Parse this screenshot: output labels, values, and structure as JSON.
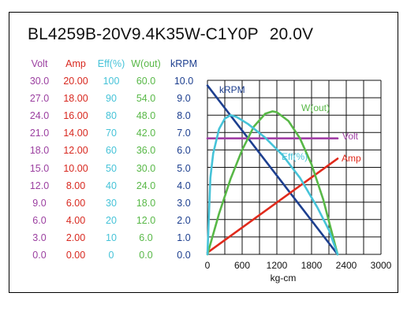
{
  "title": {
    "model": "BL4259B-20V9.4K35W-C1Y0P",
    "voltage": "20.0V"
  },
  "scale_columns": [
    {
      "key": "volt",
      "header": "Volt",
      "color": "#9b3fa0",
      "values": [
        "30.0",
        "27.0",
        "24.0",
        "21.0",
        "18.0",
        "15.0",
        "12.0",
        "9.0",
        "6.0",
        "3.0",
        "0.0"
      ]
    },
    {
      "key": "amp",
      "header": "Amp",
      "color": "#d8281f",
      "values": [
        "20.00",
        "18.00",
        "16.00",
        "14.00",
        "12.00",
        "10.00",
        "8.00",
        "6.00",
        "4.00",
        "2.00",
        "0.00"
      ]
    },
    {
      "key": "eff",
      "header": "Eff(%)",
      "color": "#46c3d8",
      "values": [
        "100",
        "90",
        "80",
        "70",
        "60",
        "50",
        "40",
        "30",
        "20",
        "10",
        "0"
      ]
    },
    {
      "key": "wout",
      "header": "W(out)",
      "color": "#58b847",
      "values": [
        "60.0",
        "54.0",
        "48.0",
        "42.0",
        "36.0",
        "30.0",
        "24.0",
        "18.0",
        "12.0",
        "6.0",
        "0.0"
      ]
    },
    {
      "key": "krpm",
      "header": "kRPM",
      "color": "#1d3f8f",
      "values": [
        "10.0",
        "9.0",
        "8.0",
        "7.0",
        "6.0",
        "5.0",
        "4.0",
        "3.0",
        "2.0",
        "1.0",
        "0.0"
      ]
    }
  ],
  "chart_data": {
    "type": "line",
    "xlabel": "kg-cm",
    "xlim": [
      0,
      3000
    ],
    "x_ticks": [
      "0",
      "600",
      "1200",
      "1800",
      "2400",
      "3000"
    ],
    "ylim_krpm": [
      0,
      10
    ],
    "grid": true,
    "series": [
      {
        "name": "kRPM",
        "color": "#1d3f8f",
        "axis": "krpm",
        "x": [
          0,
          2250
        ],
        "y": [
          9.7,
          0
        ]
      },
      {
        "name": "Amp",
        "color": "#e02a1c",
        "axis": "amp",
        "x": [
          0,
          2250
        ],
        "y": [
          0.2,
          11.0
        ]
      },
      {
        "name": "Volt",
        "color": "#a03fa6",
        "axis": "volt",
        "x": [
          0,
          2250
        ],
        "y": [
          20.0,
          20.0
        ]
      },
      {
        "name": "W(out)",
        "color": "#58b847",
        "axis": "wout",
        "x": [
          0,
          200,
          400,
          600,
          800,
          1000,
          1125,
          1200,
          1400,
          1600,
          1800,
          2000,
          2250
        ],
        "y": [
          0,
          14.0,
          26.0,
          36.0,
          44.0,
          48.5,
          49.3,
          49.0,
          46.0,
          40.0,
          31.0,
          19.0,
          0
        ]
      },
      {
        "name": "Eff(%)",
        "color": "#46c3d8",
        "axis": "eff",
        "x": [
          0,
          50,
          100,
          200,
          300,
          400,
          500,
          700,
          1000,
          1300,
          1600,
          1900,
          2100,
          2250
        ],
        "y": [
          0,
          44,
          58,
          72,
          78,
          80,
          79,
          75,
          67,
          57,
          44,
          27,
          14,
          0
        ]
      }
    ],
    "labels": [
      {
        "text": "kRPM",
        "series": "kRPM"
      },
      {
        "text": "W(out)",
        "series": "W(out)"
      },
      {
        "text": "Volt",
        "series": "Volt"
      },
      {
        "text": "Eff(%)",
        "series": "Eff(%)"
      },
      {
        "text": "Amp",
        "series": "Amp"
      }
    ]
  }
}
